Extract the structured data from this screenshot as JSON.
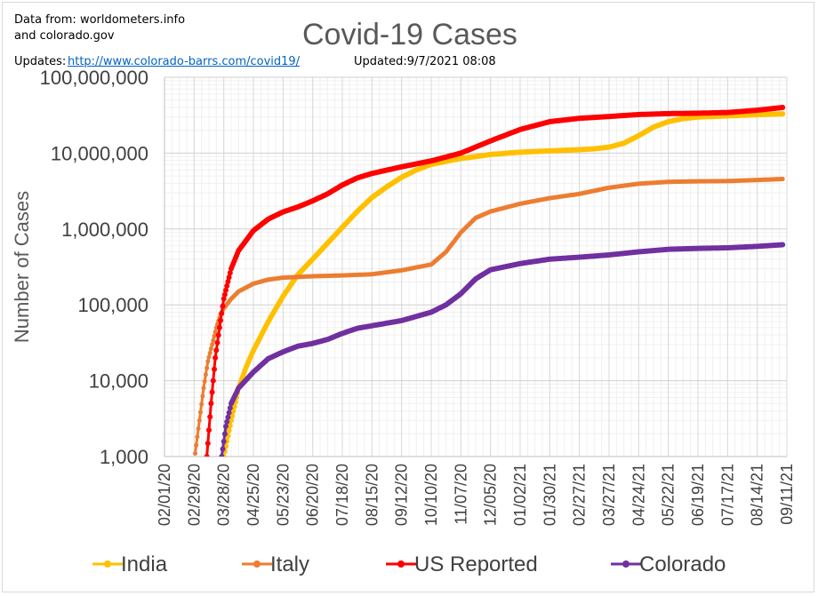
{
  "header": {
    "source_line1": "Data from: worldometers.info",
    "source_line2": "and colorado.gov",
    "updates_label": "Updates:",
    "updates_link": "http://www.colorado-barrs.com/covid19/",
    "updated_text": "Updated:9/7/2021  08:08"
  },
  "chart_data": {
    "type": "line",
    "title": "Covid-19 Cases",
    "xlabel": "",
    "ylabel": "Number of Cases",
    "yscale": "log",
    "ylim": [
      1000,
      100000000
    ],
    "xlim": [
      "2020-02-01",
      "2021-09-11"
    ],
    "grid": true,
    "legend": "bottom",
    "y_tick_labels": [
      "1,000",
      "10,000",
      "100,000",
      "1,000,000",
      "10,000,000",
      "100,000,000"
    ],
    "y_ticks": [
      1000,
      10000,
      100000,
      1000000,
      10000000,
      100000000
    ],
    "x_tick_labels": [
      "02/01/20",
      "02/29/20",
      "03/28/20",
      "04/25/20",
      "05/23/20",
      "06/20/20",
      "07/18/20",
      "08/15/20",
      "09/12/20",
      "10/10/20",
      "11/07/20",
      "12/05/20",
      "01/02/21",
      "01/30/21",
      "02/27/21",
      "03/27/21",
      "04/24/21",
      "05/22/21",
      "06/19/21",
      "07/17/21",
      "08/14/21",
      "09/11/21"
    ],
    "series": [
      {
        "name": "India",
        "color": "#ffc000",
        "points": [
          [
            "2020-03-28",
            1000
          ],
          [
            "2020-04-04",
            3000
          ],
          [
            "2020-04-11",
            8000
          ],
          [
            "2020-04-18",
            15000
          ],
          [
            "2020-04-25",
            25000
          ],
          [
            "2020-05-09",
            60000
          ],
          [
            "2020-05-23",
            130000
          ],
          [
            "2020-06-06",
            250000
          ],
          [
            "2020-06-20",
            400000
          ],
          [
            "2020-07-04",
            650000
          ],
          [
            "2020-07-18",
            1050000
          ],
          [
            "2020-08-01",
            1700000
          ],
          [
            "2020-08-15",
            2600000
          ],
          [
            "2020-08-29",
            3600000
          ],
          [
            "2020-09-12",
            4800000
          ],
          [
            "2020-09-26",
            6000000
          ],
          [
            "2020-10-10",
            7100000
          ],
          [
            "2020-10-24",
            7800000
          ],
          [
            "2020-11-07",
            8500000
          ],
          [
            "2020-11-21",
            9000000
          ],
          [
            "2020-12-05",
            9600000
          ],
          [
            "2021-01-02",
            10300000
          ],
          [
            "2021-01-30",
            10700000
          ],
          [
            "2021-02-27",
            11100000
          ],
          [
            "2021-03-13",
            11400000
          ],
          [
            "2021-03-27",
            12000000
          ],
          [
            "2021-04-10",
            13500000
          ],
          [
            "2021-04-24",
            17000000
          ],
          [
            "2021-05-08",
            22000000
          ],
          [
            "2021-05-22",
            26000000
          ],
          [
            "2021-06-05",
            28500000
          ],
          [
            "2021-06-19",
            29900000
          ],
          [
            "2021-07-17",
            31000000
          ],
          [
            "2021-08-14",
            32100000
          ],
          [
            "2021-09-07",
            33000000
          ]
        ]
      },
      {
        "name": "Italy",
        "color": "#ed7d31",
        "points": [
          [
            "2020-03-01",
            1100
          ],
          [
            "2020-03-05",
            3000
          ],
          [
            "2020-03-09",
            8000
          ],
          [
            "2020-03-13",
            18000
          ],
          [
            "2020-03-17",
            30000
          ],
          [
            "2020-03-21",
            50000
          ],
          [
            "2020-03-25",
            75000
          ],
          [
            "2020-03-28",
            90000
          ],
          [
            "2020-04-04",
            120000
          ],
          [
            "2020-04-11",
            150000
          ],
          [
            "2020-04-25",
            190000
          ],
          [
            "2020-05-09",
            215000
          ],
          [
            "2020-05-23",
            228000
          ],
          [
            "2020-06-20",
            238000
          ],
          [
            "2020-07-18",
            244000
          ],
          [
            "2020-08-15",
            253000
          ],
          [
            "2020-09-12",
            285000
          ],
          [
            "2020-10-10",
            340000
          ],
          [
            "2020-10-24",
            500000
          ],
          [
            "2020-11-07",
            900000
          ],
          [
            "2020-11-21",
            1400000
          ],
          [
            "2020-12-05",
            1700000
          ],
          [
            "2021-01-02",
            2150000
          ],
          [
            "2021-01-30",
            2550000
          ],
          [
            "2021-02-27",
            2900000
          ],
          [
            "2021-03-27",
            3500000
          ],
          [
            "2021-04-24",
            3950000
          ],
          [
            "2021-05-22",
            4180000
          ],
          [
            "2021-06-19",
            4250000
          ],
          [
            "2021-07-17",
            4280000
          ],
          [
            "2021-08-14",
            4420000
          ],
          [
            "2021-09-07",
            4560000
          ]
        ]
      },
      {
        "name": "US Reported",
        "color": "#ff0000",
        "points": [
          [
            "2020-03-12",
            1000
          ],
          [
            "2020-03-16",
            5000
          ],
          [
            "2020-03-20",
            20000
          ],
          [
            "2020-03-24",
            50000
          ],
          [
            "2020-03-28",
            120000
          ],
          [
            "2020-04-04",
            300000
          ],
          [
            "2020-04-11",
            520000
          ],
          [
            "2020-04-25",
            950000
          ],
          [
            "2020-05-09",
            1350000
          ],
          [
            "2020-05-23",
            1680000
          ],
          [
            "2020-06-06",
            1950000
          ],
          [
            "2020-06-20",
            2350000
          ],
          [
            "2020-07-04",
            2900000
          ],
          [
            "2020-07-18",
            3800000
          ],
          [
            "2020-08-01",
            4700000
          ],
          [
            "2020-08-15",
            5400000
          ],
          [
            "2020-09-12",
            6600000
          ],
          [
            "2020-10-10",
            7900000
          ],
          [
            "2020-11-07",
            10000000
          ],
          [
            "2020-12-05",
            14500000
          ],
          [
            "2021-01-02",
            20500000
          ],
          [
            "2021-01-30",
            26000000
          ],
          [
            "2021-02-27",
            28800000
          ],
          [
            "2021-03-27",
            30400000
          ],
          [
            "2021-04-24",
            32300000
          ],
          [
            "2021-05-22",
            33200000
          ],
          [
            "2021-06-19",
            33600000
          ],
          [
            "2021-07-17",
            34300000
          ],
          [
            "2021-08-14",
            36800000
          ],
          [
            "2021-09-07",
            40000000
          ]
        ]
      },
      {
        "name": "Colorado",
        "color": "#7030a0",
        "points": [
          [
            "2020-03-26",
            1000
          ],
          [
            "2020-03-30",
            2500
          ],
          [
            "2020-04-04",
            5000
          ],
          [
            "2020-04-11",
            8000
          ],
          [
            "2020-04-25",
            13000
          ],
          [
            "2020-05-09",
            19500
          ],
          [
            "2020-05-23",
            24000
          ],
          [
            "2020-06-06",
            28500
          ],
          [
            "2020-06-20",
            31000
          ],
          [
            "2020-07-04",
            35000
          ],
          [
            "2020-07-18",
            42000
          ],
          [
            "2020-08-01",
            49000
          ],
          [
            "2020-08-15",
            53000
          ],
          [
            "2020-09-12",
            62000
          ],
          [
            "2020-10-10",
            80000
          ],
          [
            "2020-10-24",
            100000
          ],
          [
            "2020-11-07",
            140000
          ],
          [
            "2020-11-21",
            220000
          ],
          [
            "2020-12-05",
            290000
          ],
          [
            "2021-01-02",
            350000
          ],
          [
            "2021-01-30",
            400000
          ],
          [
            "2021-02-27",
            425000
          ],
          [
            "2021-03-27",
            455000
          ],
          [
            "2021-04-24",
            500000
          ],
          [
            "2021-05-22",
            540000
          ],
          [
            "2021-06-19",
            555000
          ],
          [
            "2021-07-17",
            565000
          ],
          [
            "2021-08-14",
            590000
          ],
          [
            "2021-09-07",
            620000
          ]
        ]
      }
    ]
  }
}
